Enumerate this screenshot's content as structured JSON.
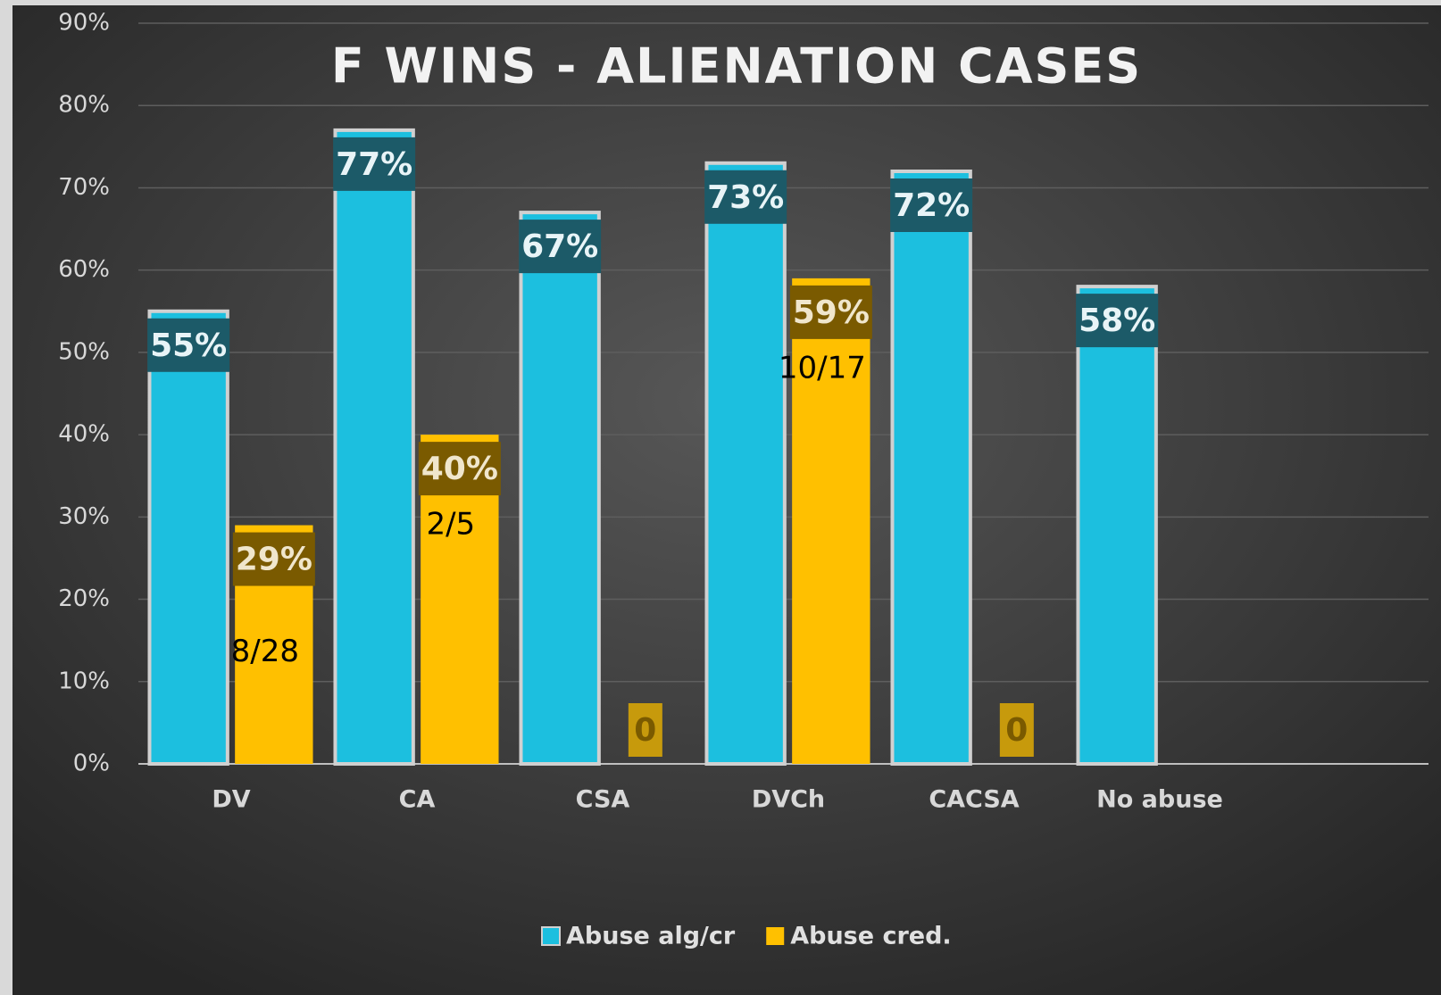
{
  "chart_data": {
    "type": "bar",
    "title": "F WINS - ALIENATION CASES",
    "categories": [
      "DV",
      "CA",
      "CSA",
      "DVCh",
      "CACSA",
      "No abuse"
    ],
    "series": [
      {
        "name": "Abuse alg/cr",
        "color": "#1cbfdf",
        "values": [
          55,
          77,
          67,
          73,
          72,
          58
        ],
        "value_labels": [
          "55%",
          "77%",
          "67%",
          "73%",
          "72%",
          "58%"
        ]
      },
      {
        "name": "Abuse cred.",
        "color": "#ffc000",
        "values": [
          29,
          40,
          0,
          59,
          0,
          null
        ],
        "value_labels": [
          "29%",
          "40%",
          "0",
          "59%",
          "0",
          null
        ],
        "counts": [
          "8/28",
          "2/5",
          null,
          "10/17",
          null,
          null
        ]
      }
    ],
    "ylim": [
      0,
      90
    ],
    "yticks": [
      {
        "value": 0,
        "label": "0%"
      },
      {
        "value": 10,
        "label": "10%"
      },
      {
        "value": 20,
        "label": "20%"
      },
      {
        "value": 30,
        "label": "30%"
      },
      {
        "value": 40,
        "label": "40%"
      },
      {
        "value": 50,
        "label": "50%"
      },
      {
        "value": 60,
        "label": "60%"
      },
      {
        "value": 70,
        "label": "70%"
      },
      {
        "value": 80,
        "label": "80%"
      },
      {
        "value": 90,
        "label": "90%"
      }
    ],
    "grid": true
  }
}
